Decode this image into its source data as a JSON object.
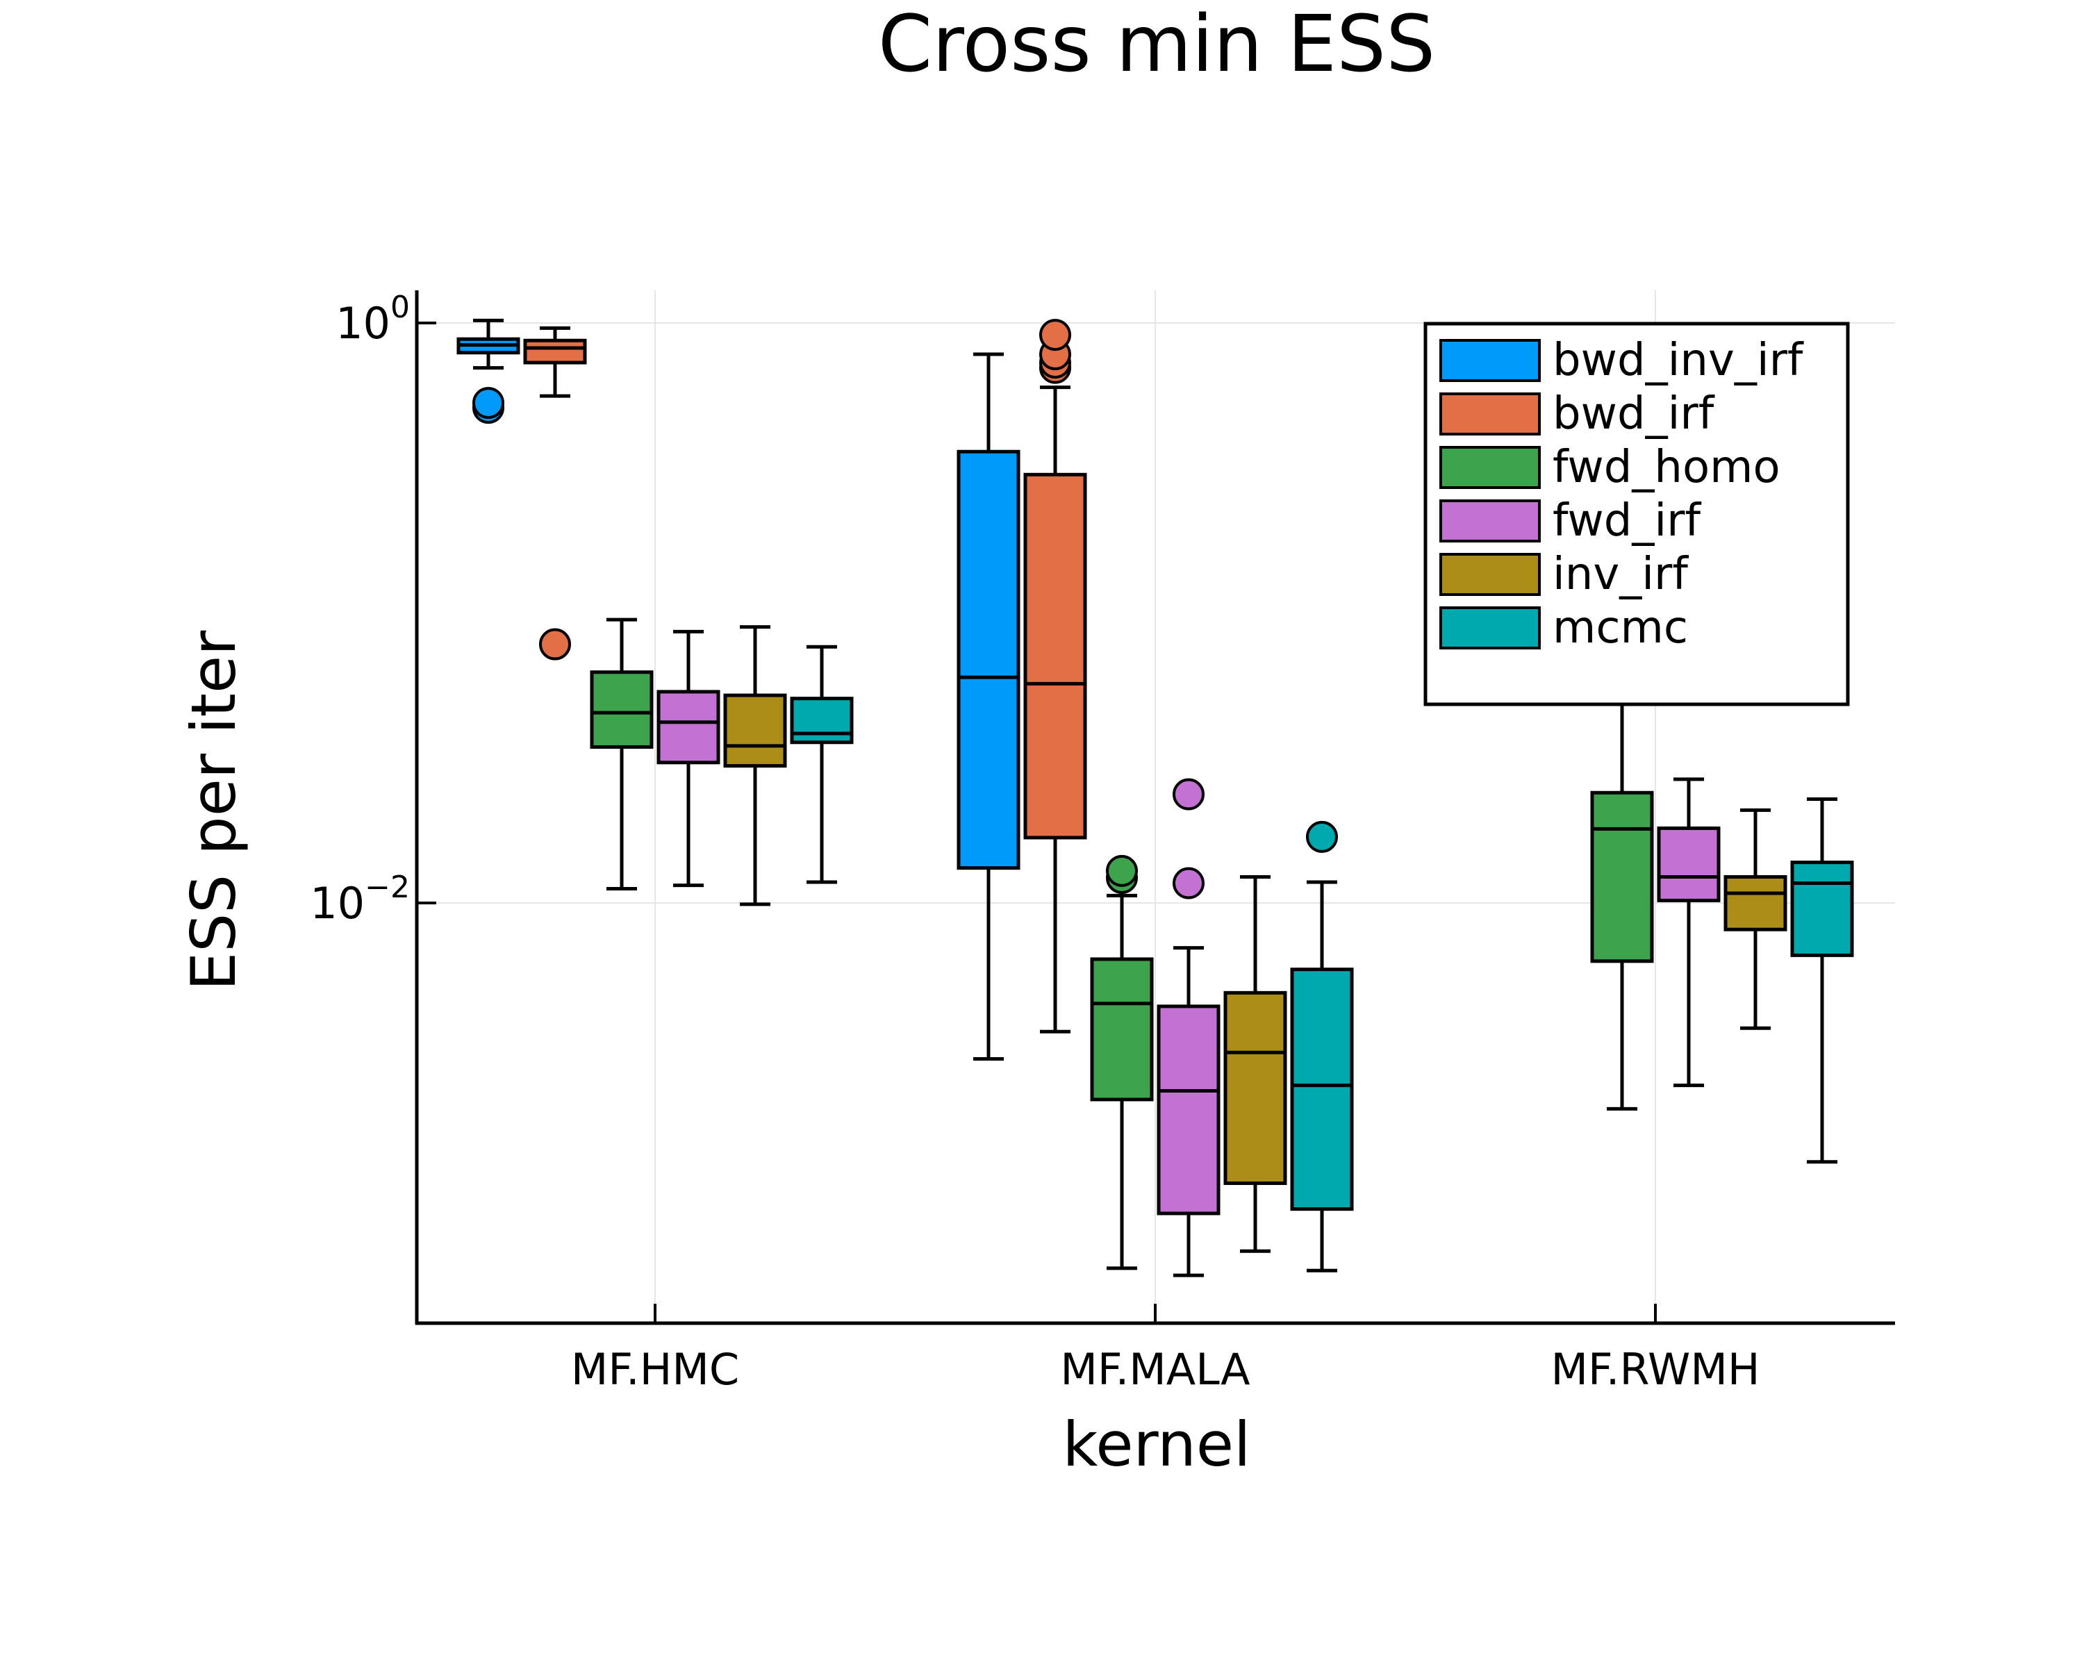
{
  "chart_data": {
    "type": "box",
    "title": "Cross min ESS",
    "xlabel": "kernel",
    "ylabel": "ESS per iter",
    "y_scale": "log10",
    "y_ticks": [
      {
        "value": 1,
        "base": "10",
        "exp": "0"
      },
      {
        "value": 0.01,
        "base": "10",
        "exp": "−2"
      }
    ],
    "ylim": [
      0.00036,
      1.3
    ],
    "grid": true,
    "legend_position": "top-right",
    "categories": [
      "MF.HMC",
      "MF.MALA",
      "MF.RWMH"
    ],
    "series": [
      {
        "name": "bwd_inv_irf",
        "color": "#009AFA",
        "boxes": [
          {
            "category": "MF.HMC",
            "whisker_low": 0.7,
            "q1": 0.79,
            "median": 0.84,
            "q3": 0.88,
            "whisker_high": 1.02,
            "outliers": [
              0.51,
              0.53
            ]
          },
          {
            "category": "MF.MALA",
            "whisker_low": 0.0029,
            "q1": 0.0132,
            "median": 0.06,
            "q3": 0.36,
            "whisker_high": 0.78,
            "outliers": []
          }
        ]
      },
      {
        "name": "bwd_irf",
        "color": "#E36F47",
        "boxes": [
          {
            "category": "MF.HMC",
            "whisker_low": 0.56,
            "q1": 0.73,
            "median": 0.82,
            "q3": 0.87,
            "whisker_high": 0.96,
            "outliers": [
              0.078
            ]
          },
          {
            "category": "MF.MALA",
            "whisker_low": 0.0036,
            "q1": 0.0168,
            "median": 0.057,
            "q3": 0.3,
            "whisker_high": 0.6,
            "outliers": [
              0.7,
              0.73,
              0.78,
              0.91
            ]
          }
        ]
      },
      {
        "name": "fwd_homo",
        "color": "#3DA44D",
        "boxes": [
          {
            "category": "MF.MALA",
            "whisker_low": 0.00055,
            "q1": 0.0021,
            "median": 0.0045,
            "q3": 0.0064,
            "whisker_high": 0.0106,
            "outliers": [
              0.0122,
              0.0129
            ]
          },
          {
            "category": "MF.RWMH",
            "whisker_low": 0.00195,
            "q1": 0.0063,
            "median": 0.018,
            "q3": 0.024,
            "whisker_high": 0.065,
            "outliers": []
          }
        ]
      },
      {
        "name": "fwd_irf",
        "color": "#C371D2",
        "boxes": [
          {
            "category": "MF.MALA",
            "whisker_low": 0.00052,
            "q1": 0.00085,
            "median": 0.00225,
            "q3": 0.0044,
            "whisker_high": 0.007,
            "outliers": [
              0.0117,
              0.0237
            ]
          },
          {
            "category": "MF.RWMH",
            "whisker_low": 0.00235,
            "q1": 0.0102,
            "median": 0.0123,
            "q3": 0.0181,
            "whisker_high": 0.0267,
            "outliers": []
          }
        ]
      },
      {
        "name": "inv_irf",
        "color": "#AC8D18",
        "boxes": [
          {
            "category": "MF.MALA",
            "whisker_low": 0.00063,
            "q1": 0.00108,
            "median": 0.00305,
            "q3": 0.0049,
            "whisker_high": 0.0123,
            "outliers": []
          },
          {
            "category": "MF.RWMH",
            "whisker_low": 0.0037,
            "q1": 0.0081,
            "median": 0.0108,
            "q3": 0.0123,
            "whisker_high": 0.0209,
            "outliers": []
          }
        ]
      },
      {
        "name": "mcmc",
        "color": "#00A9AD",
        "boxes": [
          {
            "category": "MF.MALA",
            "whisker_low": 0.00054,
            "q1": 0.00088,
            "median": 0.00235,
            "q3": 0.0059,
            "whisker_high": 0.0118,
            "outliers": [
              0.0169
            ]
          },
          {
            "category": "MF.RWMH",
            "whisker_low": 0.00128,
            "q1": 0.0066,
            "median": 0.0117,
            "q3": 0.0138,
            "whisker_high": 0.0228,
            "outliers": []
          }
        ]
      }
    ],
    "hmc_extra": [
      {
        "name": "fwd_homo",
        "whisker_low": 0.0112,
        "q1": 0.0345,
        "median": 0.0453,
        "q3": 0.0625,
        "whisker_high": 0.0948,
        "outliers": []
      },
      {
        "name": "fwd_irf",
        "whisker_low": 0.0115,
        "q1": 0.0305,
        "median": 0.042,
        "q3": 0.0535,
        "whisker_high": 0.0862,
        "outliers": []
      },
      {
        "name": "inv_irf",
        "whisker_low": 0.0099,
        "q1": 0.0297,
        "median": 0.0348,
        "q3": 0.052,
        "whisker_high": 0.0895,
        "outliers": []
      },
      {
        "name": "mcmc",
        "whisker_low": 0.0118,
        "q1": 0.0358,
        "median": 0.0384,
        "q3": 0.0507,
        "whisker_high": 0.0764,
        "outliers": []
      }
    ]
  }
}
